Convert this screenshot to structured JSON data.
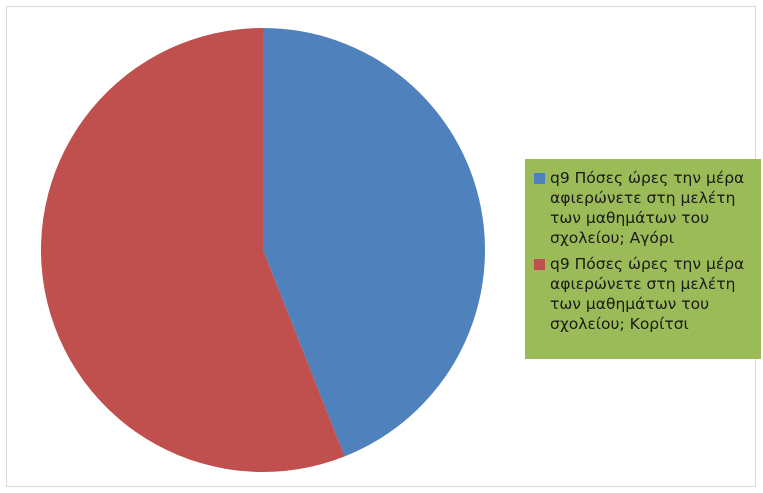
{
  "chart_data": {
    "type": "pie",
    "title": "",
    "start_angle_deg": 0,
    "direction": "clockwise",
    "legend_position": "right",
    "legend_background": "#9bbb59",
    "series": [
      {
        "name": "q9 Πόσες ώρες την μέρα αφιερώνετε στη μελέτη των μαθημάτων του σχολείου; Αγόρι",
        "value": 44,
        "color": "#4f81bd"
      },
      {
        "name": "q9 Πόσες ώρες την μέρα αφιερώνετε στη μελέτη των μαθημάτων του σχολείου; Κορίτσι",
        "value": 56,
        "color": "#c0504d"
      }
    ]
  }
}
